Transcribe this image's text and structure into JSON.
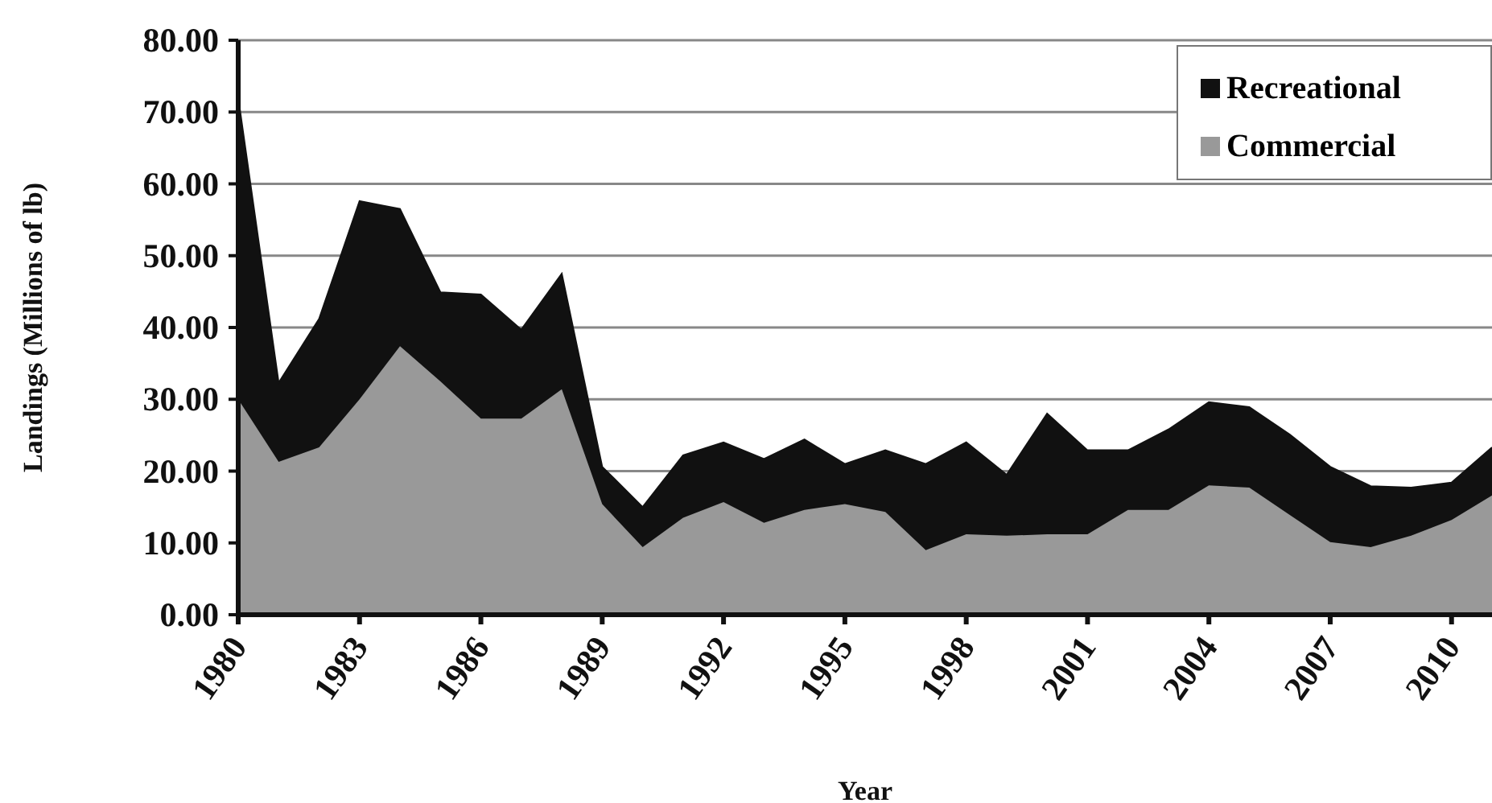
{
  "chart_data": {
    "type": "area",
    "stacked": true,
    "xlabel": "Year",
    "ylabel": "Landings (Millions of lb)",
    "x": [
      1980,
      1981,
      1982,
      1983,
      1984,
      1985,
      1986,
      1987,
      1988,
      1989,
      1990,
      1991,
      1992,
      1993,
      1994,
      1995,
      1996,
      1997,
      1998,
      1999,
      2000,
      2001,
      2002,
      2003,
      2004,
      2005,
      2006,
      2007,
      2008,
      2009,
      2010,
      2011
    ],
    "series": [
      {
        "name": "Commercial",
        "color": "#999999",
        "values": [
          30,
          21.3,
          23.3,
          30,
          37.4,
          32.5,
          27.3,
          27.3,
          31.4,
          15.4,
          9.4,
          13.5,
          15.7,
          12.8,
          14.6,
          15.4,
          14.3,
          9,
          11.2,
          11,
          11.2,
          11.2,
          14.6,
          14.6,
          18,
          17.7,
          13.9,
          10.1,
          9.4,
          11,
          13.2,
          16.6
        ]
      },
      {
        "name": "Recreational",
        "color": "#111111",
        "values": [
          42,
          11,
          17.9,
          27.6,
          19.1,
          12.4,
          17.3,
          12.4,
          16.1,
          5.2,
          5.6,
          8.7,
          8.3,
          8.9,
          9.8,
          5.6,
          8.6,
          12,
          12.8,
          8.5,
          16.8,
          11.7,
          8.3,
          11.2,
          11.6,
          11.2,
          11.2,
          10.5,
          8.5,
          6.7,
          5.2,
          6.7
        ]
      }
    ],
    "xlim": [
      1980,
      2011
    ],
    "xticks": [
      1980,
      1983,
      1986,
      1989,
      1992,
      1995,
      1998,
      2001,
      2004,
      2007,
      2010
    ],
    "ylim": [
      0,
      80
    ],
    "yticks": [
      {
        "value": 0,
        "label": "0.00"
      },
      {
        "value": 10,
        "label": "10.00"
      },
      {
        "value": 20,
        "label": "20.00"
      },
      {
        "value": 30,
        "label": "30.00"
      },
      {
        "value": 40,
        "label": "40.00"
      },
      {
        "value": 50,
        "label": "50.00"
      },
      {
        "value": 60,
        "label": "60.00"
      },
      {
        "value": 70,
        "label": "70.00"
      },
      {
        "value": 80,
        "label": "80.00"
      }
    ],
    "grid": "y",
    "legend": "top right"
  }
}
